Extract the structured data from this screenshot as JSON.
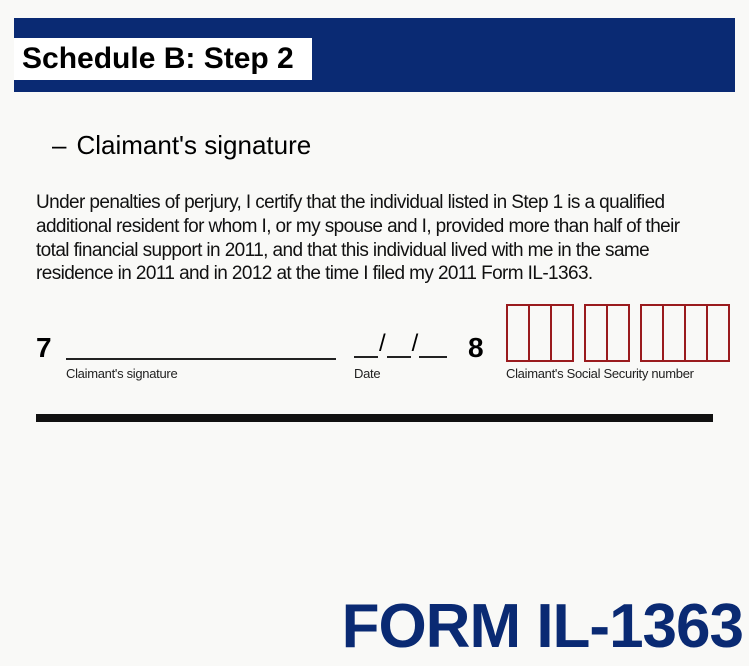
{
  "colors": {
    "header_bg": "#0a2a73",
    "page_bg": "#f9f9f7",
    "text": "#000000",
    "field_line": "#222222",
    "ssn_box": "#9a1b1e",
    "thick_rule": "#111111",
    "footer": "#0a2a73"
  },
  "header": {
    "title": "Schedule B: Step 2"
  },
  "bullet": {
    "dash": "–",
    "text": "Claimant's signature"
  },
  "certification": {
    "text": "Under penalties of perjury, I certify that the individual listed in Step 1 is a qualified additional resident for whom I, or my spouse and I, provided more than half of their total financial support in 2011, and that this individual lived with me in the same residence in 2011 and in 2012 at the time I filed my 2011 Form IL-1363."
  },
  "fields": {
    "line7": {
      "number": "7",
      "signature_label": "Claimant's signature",
      "date_label": "Date",
      "slash": "/"
    },
    "line8": {
      "number": "8",
      "ssn_label": "Claimant's Social Security number",
      "groups": [
        3,
        2,
        4
      ]
    }
  },
  "footer": {
    "text": "FORM IL-1363"
  }
}
